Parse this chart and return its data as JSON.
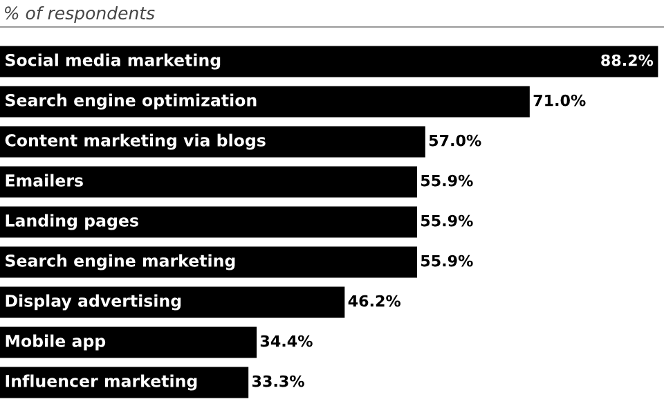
{
  "chart_data": {
    "type": "bar",
    "orientation": "horizontal",
    "subtitle": "% of respondents",
    "categories": [
      "Social media marketing",
      "Search engine optimization",
      "Content marketing via blogs",
      "Emailers",
      "Landing pages",
      "Search engine marketing",
      "Display advertising",
      "Mobile app",
      "Influencer marketing"
    ],
    "values": [
      88.2,
      71.0,
      57.0,
      55.9,
      55.9,
      55.9,
      46.2,
      34.4,
      33.3
    ],
    "value_labels": [
      "88.2%",
      "71.0%",
      "57.0%",
      "55.9%",
      "55.9%",
      "55.9%",
      "46.2%",
      "34.4%",
      "33.3%"
    ],
    "color": "#000000",
    "xlim": [
      0,
      89
    ],
    "tick_labels": false,
    "grid": false,
    "legend": false
  }
}
